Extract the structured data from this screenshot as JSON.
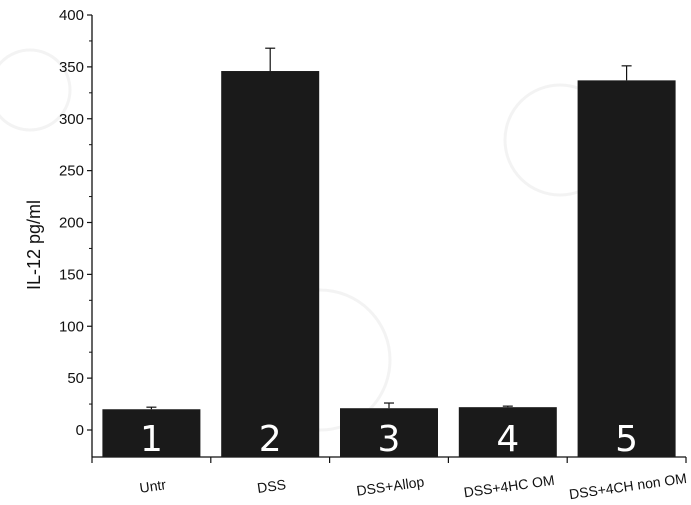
{
  "chart_data": {
    "type": "bar",
    "categories": [
      "Untr",
      "DSS",
      "DSS+Allop",
      "DSS+4HC OM",
      "DSS+4CH non OM"
    ],
    "values": [
      20,
      346,
      21,
      22,
      337
    ],
    "errors": [
      2,
      22,
      5,
      1,
      14
    ],
    "bar_labels": [
      "1",
      "2",
      "3",
      "4",
      "5"
    ],
    "title": "",
    "xlabel": "",
    "ylabel": "IL-12 pg/ml",
    "ylim": [
      -20,
      400
    ],
    "yticks": [
      0,
      50,
      100,
      150,
      200,
      250,
      300,
      350,
      400
    ],
    "grid": false,
    "bar_color": "#1a1a1a"
  }
}
